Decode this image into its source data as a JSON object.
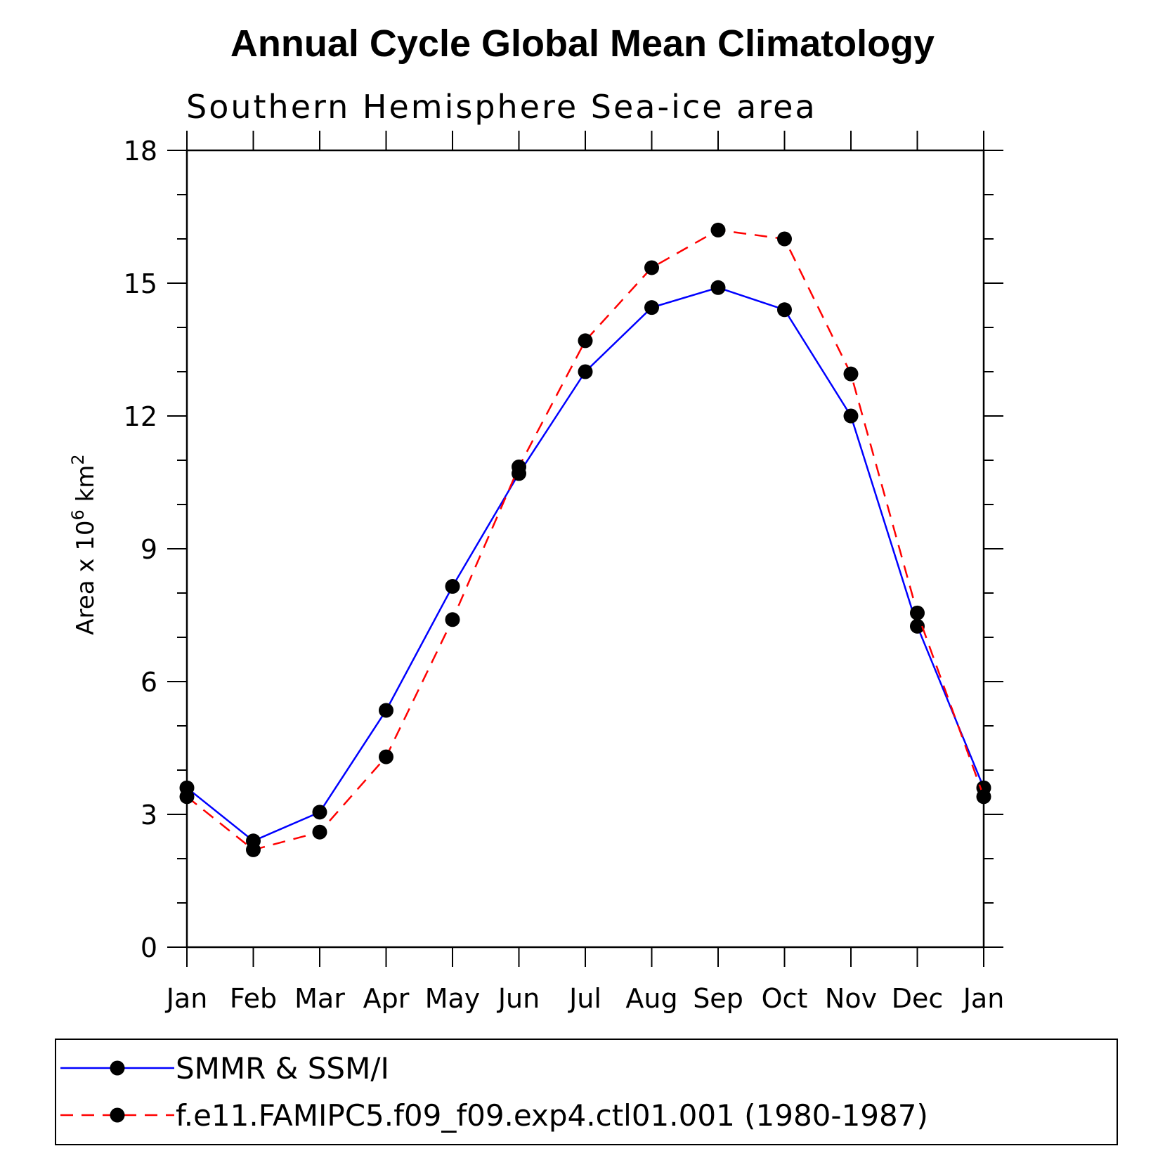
{
  "chart_data": {
    "type": "line",
    "title": "Annual Cycle Global Mean Climatology",
    "subtitle": "Southern Hemisphere Sea-ice area",
    "ylabel": "Area x 10",
    "ylabel_exponent": "6",
    "ylabel_unit": " km",
    "ylabel_unit_exponent": "2",
    "xlabel": "",
    "categories": [
      "Jan",
      "Feb",
      "Mar",
      "Apr",
      "May",
      "Jun",
      "Jul",
      "Aug",
      "Sep",
      "Oct",
      "Nov",
      "Dec",
      "Jan"
    ],
    "ylim": [
      0,
      18
    ],
    "yticks": [
      0,
      3,
      6,
      9,
      12,
      15,
      18
    ],
    "series": [
      {
        "name": "SMMR & SSM/I",
        "color": "#0000ff",
        "dash": "solid",
        "values": [
          3.6,
          2.4,
          3.05,
          5.35,
          8.15,
          10.7,
          13.0,
          14.45,
          14.9,
          14.4,
          12.0,
          7.25,
          3.6
        ]
      },
      {
        "name": "f.e11.FAMIPC5.f09_f09.exp4.ctl01.001 (1980-1987)",
        "color": "#ff0000",
        "dash": "dashed",
        "values": [
          3.4,
          2.2,
          2.6,
          4.3,
          7.4,
          10.85,
          13.7,
          15.35,
          16.2,
          16.0,
          12.95,
          7.55,
          3.4
        ]
      }
    ],
    "grid": false,
    "legend": "bottom"
  }
}
